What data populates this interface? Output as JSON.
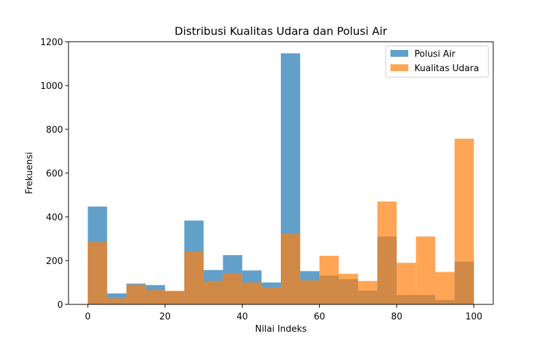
{
  "chart_data": {
    "type": "bar",
    "title": "Distribusi Kualitas Udara dan Polusi Air",
    "xlabel": "Nilai Indeks",
    "ylabel": "Frekuensi",
    "xlim": [
      -5,
      105
    ],
    "ylim": [
      0,
      1200
    ],
    "xticks": [
      0,
      20,
      40,
      60,
      80,
      100
    ],
    "yticks": [
      0,
      200,
      400,
      600,
      800,
      1000,
      1200
    ],
    "bin_edges": [
      0,
      5,
      10,
      15,
      20,
      25,
      30,
      35,
      40,
      45,
      50,
      55,
      60,
      65,
      70,
      75,
      80,
      85,
      90,
      95,
      100
    ],
    "grid": false,
    "legend_position": "top-right",
    "series": [
      {
        "name": "Polusi Air",
        "color": "#1f77b4",
        "opacity": 0.7,
        "values": [
          447,
          50,
          95,
          88,
          60,
          383,
          157,
          225,
          155,
          100,
          1147,
          152,
          132,
          115,
          63,
          310,
          43,
          43,
          20,
          195
        ]
      },
      {
        "name": "Kualitas Udara",
        "color": "#ff7f0e",
        "opacity": 0.7,
        "values": [
          285,
          28,
          90,
          65,
          62,
          242,
          107,
          142,
          100,
          78,
          322,
          110,
          222,
          140,
          107,
          470,
          190,
          310,
          148,
          757
        ]
      }
    ]
  }
}
